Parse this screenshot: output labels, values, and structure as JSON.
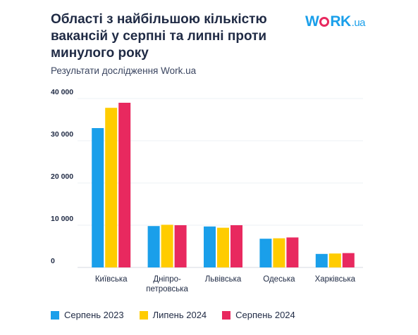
{
  "title": "Області з найбільшою кількістю вакансій у серпні та липні проти минулого року",
  "subtitle": "Результати дослідження Work.ua",
  "logo": {
    "main": "WORK",
    "suffix": ".ua"
  },
  "chart_data": {
    "type": "bar",
    "title": "Області з найбільшою кількістю вакансій у серпні та липні проти минулого року",
    "subtitle": "Результати дослідження Work.ua",
    "categories": [
      "Київська",
      "Дніпро-\nпетровська",
      "Львівська",
      "Одеська",
      "Харківська"
    ],
    "series": [
      {
        "name": "Серпень 2023",
        "color": "#1a9fea",
        "values": [
          33000,
          9800,
          9700,
          6800,
          3200
        ]
      },
      {
        "name": "Липень 2024",
        "color": "#ffcc00",
        "values": [
          37800,
          10100,
          9400,
          6900,
          3300
        ]
      },
      {
        "name": "Серпень 2024",
        "color": "#e8295f",
        "values": [
          39000,
          10000,
          10000,
          7100,
          3400
        ]
      }
    ],
    "yticks": [
      "0",
      "10 000",
      "20 000",
      "30 000",
      "40 000"
    ],
    "ytick_values": [
      0,
      10000,
      20000,
      30000,
      40000
    ],
    "ylim": [
      0,
      40000
    ],
    "xlabel": "",
    "ylabel": "",
    "grid": true,
    "legend_position": "bottom-left"
  }
}
